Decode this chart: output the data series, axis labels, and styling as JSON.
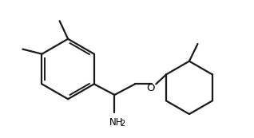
{
  "background_color": "#ffffff",
  "line_color": "#1a1a1a",
  "line_width": 1.6,
  "text_color": "#000000",
  "figure_width": 3.18,
  "figure_height": 1.73,
  "dpi": 100,
  "xlim": [
    0.0,
    10.5
  ],
  "ylim": [
    0.8,
    6.2
  ]
}
